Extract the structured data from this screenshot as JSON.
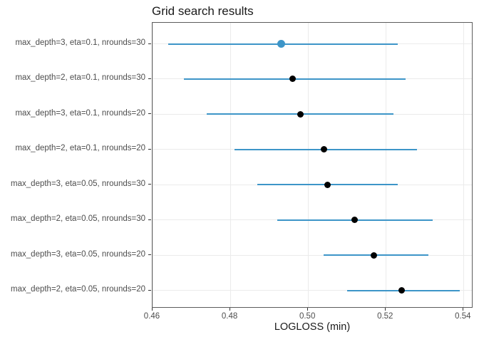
{
  "chart_data": {
    "type": "scatter",
    "subtype": "point-range (dot plot with horizontal interval bars)",
    "title": "Grid search results",
    "xlabel": "LOGLOSS (min)",
    "ylabel": "",
    "xlim": [
      0.46,
      0.5425
    ],
    "x_ticks": [
      {
        "value": 0.46,
        "label": "0.46"
      },
      {
        "value": 0.48,
        "label": "0.48"
      },
      {
        "value": 0.5,
        "label": "0.50"
      },
      {
        "value": 0.52,
        "label": "0.52"
      },
      {
        "value": 0.54,
        "label": "0.54"
      }
    ],
    "grid": "major only, light gray, panel border on",
    "legend": "none",
    "rows": [
      {
        "label": "max_depth=3, eta=0.1, nrounds=30",
        "low": 0.464,
        "mid": 0.493,
        "high": 0.523,
        "highlight": true
      },
      {
        "label": "max_depth=2, eta=0.1, nrounds=30",
        "low": 0.468,
        "mid": 0.496,
        "high": 0.525,
        "highlight": false
      },
      {
        "label": "max_depth=3, eta=0.1, nrounds=20",
        "low": 0.474,
        "mid": 0.498,
        "high": 0.522,
        "highlight": false
      },
      {
        "label": "max_depth=2, eta=0.1, nrounds=20",
        "low": 0.481,
        "mid": 0.504,
        "high": 0.528,
        "highlight": false
      },
      {
        "label": "max_depth=3, eta=0.05, nrounds=30",
        "low": 0.487,
        "mid": 0.505,
        "high": 0.523,
        "highlight": false
      },
      {
        "label": "max_depth=2, eta=0.05, nrounds=30",
        "low": 0.492,
        "mid": 0.512,
        "high": 0.532,
        "highlight": false
      },
      {
        "label": "max_depth=3, eta=0.05, nrounds=20",
        "low": 0.504,
        "mid": 0.517,
        "high": 0.531,
        "highlight": false
      },
      {
        "label": "max_depth=2, eta=0.05, nrounds=20",
        "low": 0.51,
        "mid": 0.524,
        "high": 0.539,
        "highlight": false
      }
    ]
  },
  "colors": {
    "interval_line": "#3d95c8",
    "point": "#000000",
    "highlight_point": "#3d95c8",
    "gridline": "#ebebeb",
    "panel_border": "#5c5c5c",
    "axis_text": "#4d4d4d",
    "title_text": "#1a1a1a",
    "tick_mark": "#333333",
    "background": "#ffffff"
  }
}
